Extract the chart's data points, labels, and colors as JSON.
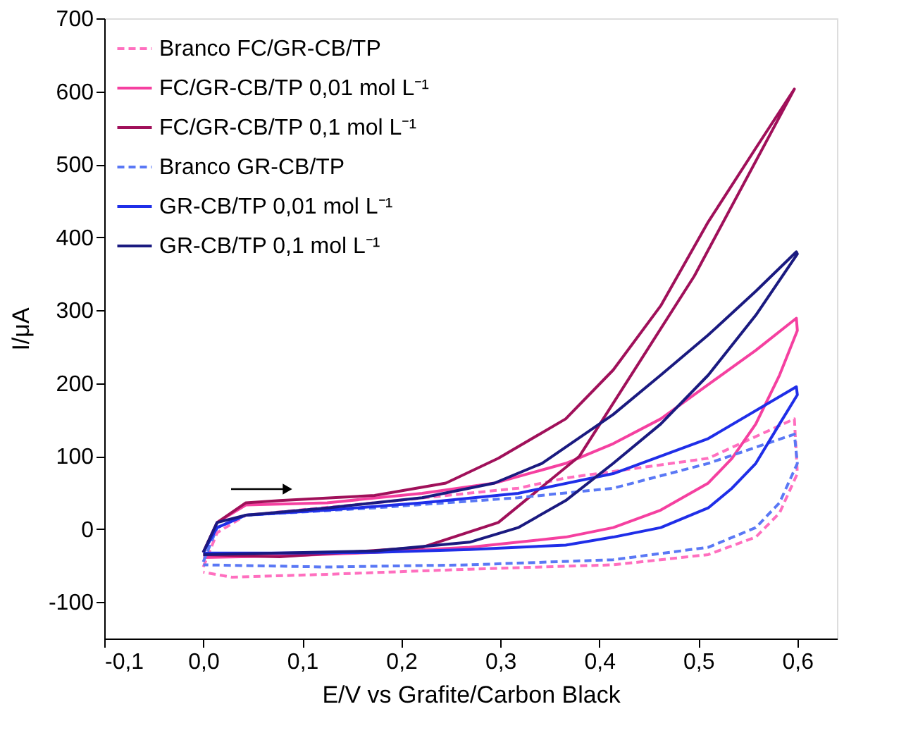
{
  "chart_data": {
    "type": "line",
    "xlabel": "E/V vs Grafite/Carbon Black",
    "ylabel": "I/μA",
    "xlim": [
      -0.1,
      0.64
    ],
    "ylim": [
      -150,
      700
    ],
    "xticks": [
      {
        "value": -0.1,
        "label": "-0,1"
      },
      {
        "value": 0,
        "label": "0,0"
      },
      {
        "value": 0.1,
        "label": "0,1"
      },
      {
        "value": 0.2,
        "label": "0,2"
      },
      {
        "value": 0.3,
        "label": "0,3"
      },
      {
        "value": 0.4,
        "label": "0,4"
      },
      {
        "value": 0.5,
        "label": "0,5"
      },
      {
        "value": 0.6,
        "label": "0,6"
      }
    ],
    "yticks": [
      -100,
      0,
      100,
      200,
      300,
      400,
      500,
      600,
      700
    ],
    "grid": false,
    "legend": "top left",
    "marker": "none",
    "series": [
      {
        "name": "Branco FC/GR-CB/TP",
        "color": "#ff6fbf",
        "line_style": "dashed",
        "x": [
          0,
          0.014,
          0.043,
          0.173,
          0.318,
          0.366,
          0.51,
          0.597,
          0.6,
          0.582,
          0.558,
          0.51,
          0.414,
          0.269,
          0.125,
          0.029,
          0
        ],
        "values": [
          -52,
          -5,
          19,
          36,
          56,
          70,
          97,
          151,
          76,
          22,
          -11,
          -35,
          -49,
          -55,
          -62,
          -66,
          -59
        ]
      },
      {
        "name": "FC/GR-CB/TP 0,01 mol L⁻¹",
        "color": "#f540a0",
        "line_style": "solid",
        "x": [
          0,
          0.014,
          0.043,
          0.125,
          0.221,
          0.294,
          0.366,
          0.414,
          0.462,
          0.51,
          0.558,
          0.599,
          0.6,
          0.582,
          0.558,
          0.534,
          0.51,
          0.462,
          0.414,
          0.366,
          0.269,
          0.173,
          0.077,
          0
        ],
        "values": [
          -32,
          9,
          33,
          36,
          49,
          63,
          90,
          117,
          151,
          198,
          245,
          289,
          272,
          211,
          144,
          97,
          63,
          26,
          2,
          -11,
          -25,
          -32,
          -37,
          -39
        ]
      },
      {
        "name": "FC/GR-CB/TP 0,1 mol L⁻¹",
        "color": "#a0105a",
        "line_style": "solid",
        "x": [
          0,
          0.014,
          0.043,
          0.077,
          0.173,
          0.245,
          0.298,
          0.366,
          0.414,
          0.462,
          0.51,
          0.558,
          0.597,
          0.496,
          0.38,
          0.298,
          0.221,
          0.077,
          0
        ],
        "values": [
          -32,
          9,
          36,
          39,
          46,
          63,
          97,
          151,
          218,
          306,
          421,
          522,
          603,
          347,
          100,
          9,
          -25,
          -38,
          -35
        ]
      },
      {
        "name": "Branco GR-CB/TP",
        "color": "#5a78f5",
        "line_style": "dashed",
        "x": [
          0,
          0.014,
          0.043,
          0.173,
          0.318,
          0.414,
          0.51,
          0.597,
          0.6,
          0.582,
          0.558,
          0.51,
          0.414,
          0.269,
          0.125,
          0
        ],
        "values": [
          -45,
          2,
          19,
          29,
          43,
          56,
          90,
          130,
          90,
          36,
          2,
          -25,
          -42,
          -49,
          -52,
          -49
        ]
      },
      {
        "name": "GR-CB/TP 0,01 mol L⁻¹",
        "color": "#1f2ee8",
        "line_style": "solid",
        "x": [
          0,
          0.014,
          0.043,
          0.125,
          0.221,
          0.318,
          0.414,
          0.51,
          0.599,
          0.6,
          0.582,
          0.558,
          0.534,
          0.51,
          0.462,
          0.414,
          0.366,
          0.269,
          0.173,
          0.077,
          0
        ],
        "values": [
          -32,
          2,
          19,
          26,
          36,
          49,
          76,
          124,
          195,
          184,
          144,
          90,
          56,
          29,
          2,
          -11,
          -22,
          -28,
          -32,
          -33,
          -33
        ]
      },
      {
        "name": "GR-CB/TP 0,1 mol L⁻¹",
        "color": "#1a1a80",
        "line_style": "solid",
        "x": [
          0,
          0.014,
          0.043,
          0.125,
          0.221,
          0.294,
          0.342,
          0.414,
          0.462,
          0.51,
          0.558,
          0.599,
          0.6,
          0.558,
          0.51,
          0.462,
          0.414,
          0.366,
          0.318,
          0.269,
          0.173,
          0.077,
          0
        ],
        "values": [
          -32,
          9,
          19,
          29,
          43,
          63,
          90,
          157,
          211,
          266,
          326,
          380,
          377,
          293,
          211,
          144,
          90,
          39,
          2,
          -18,
          -30,
          -33,
          -35
        ]
      }
    ]
  }
}
